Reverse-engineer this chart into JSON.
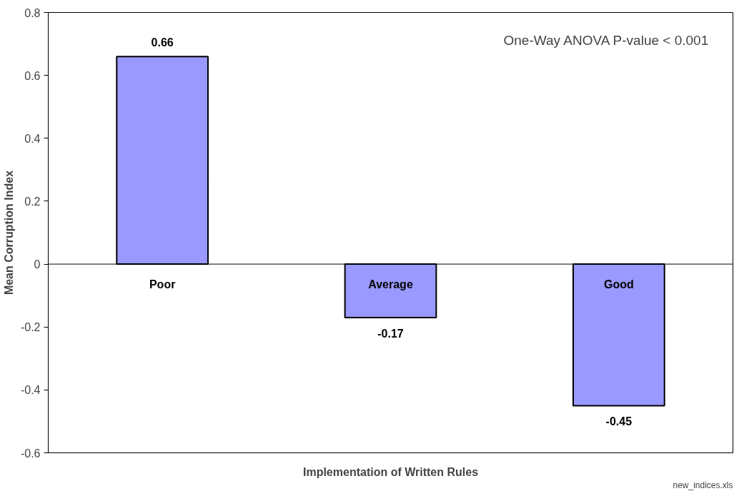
{
  "chart_data": {
    "type": "bar",
    "categories": [
      "Poor",
      "Average",
      "Good"
    ],
    "values": [
      0.66,
      -0.17,
      -0.45
    ],
    "color": "#9999ff",
    "xlabel": "Implementation of Written Rules",
    "ylabel": "Mean Corruption Index",
    "ylim": [
      -0.6,
      0.8
    ],
    "yticks": [
      {
        "value": -0.6,
        "label": "-0.6"
      },
      {
        "value": -0.4,
        "label": "-0.4"
      },
      {
        "value": -0.2,
        "label": "-0.2"
      },
      0,
      {
        "value": 0.2,
        "label": "0.2"
      },
      {
        "value": 0.4,
        "label": "0.4"
      },
      {
        "value": 0.6,
        "label": "0.6"
      },
      {
        "value": 0.8,
        "label": "0.8"
      }
    ],
    "data_labels": true,
    "grid": false,
    "annotations": [
      "One-Way ANOVA P-value < 0.001",
      "new_indices.xls"
    ]
  }
}
